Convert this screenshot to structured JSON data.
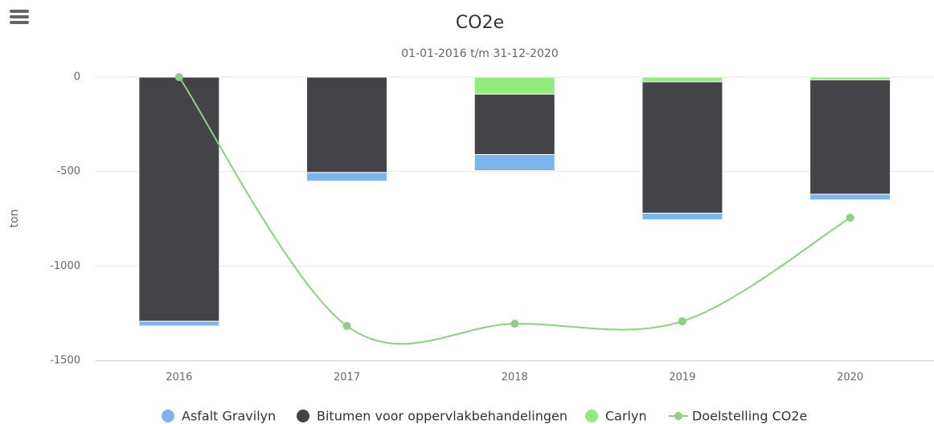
{
  "chart_data": {
    "type": "bar",
    "stacked": true,
    "title": "CO2e",
    "subtitle": "01-01-2016 t/m 31-12-2020",
    "y_label": "ton",
    "categories": [
      "2016",
      "2017",
      "2018",
      "2019",
      "2020"
    ],
    "series": [
      {
        "name": "Asfalt Gravilyn",
        "color": "#7cb5ec",
        "values": [
          -25,
          -45,
          -85,
          -35,
          -30
        ]
      },
      {
        "name": "Bitumen voor oppervlakbehandelingen",
        "color": "#434348",
        "values": [
          -1292,
          -505,
          -320,
          -695,
          -605
        ]
      },
      {
        "name": "Carlyn",
        "color": "#90ed7d",
        "values": [
          0,
          0,
          -90,
          -25,
          -15
        ]
      },
      {
        "name": "Doelstelling CO2e",
        "color": "#8bd17f",
        "type": "spline",
        "values": [
          0,
          -1317,
          -1305,
          -1292,
          -744
        ]
      }
    ],
    "ylim": [
      -1500,
      0
    ],
    "yticks": [
      0,
      -500,
      -1000,
      -1500
    ],
    "grid": true
  }
}
